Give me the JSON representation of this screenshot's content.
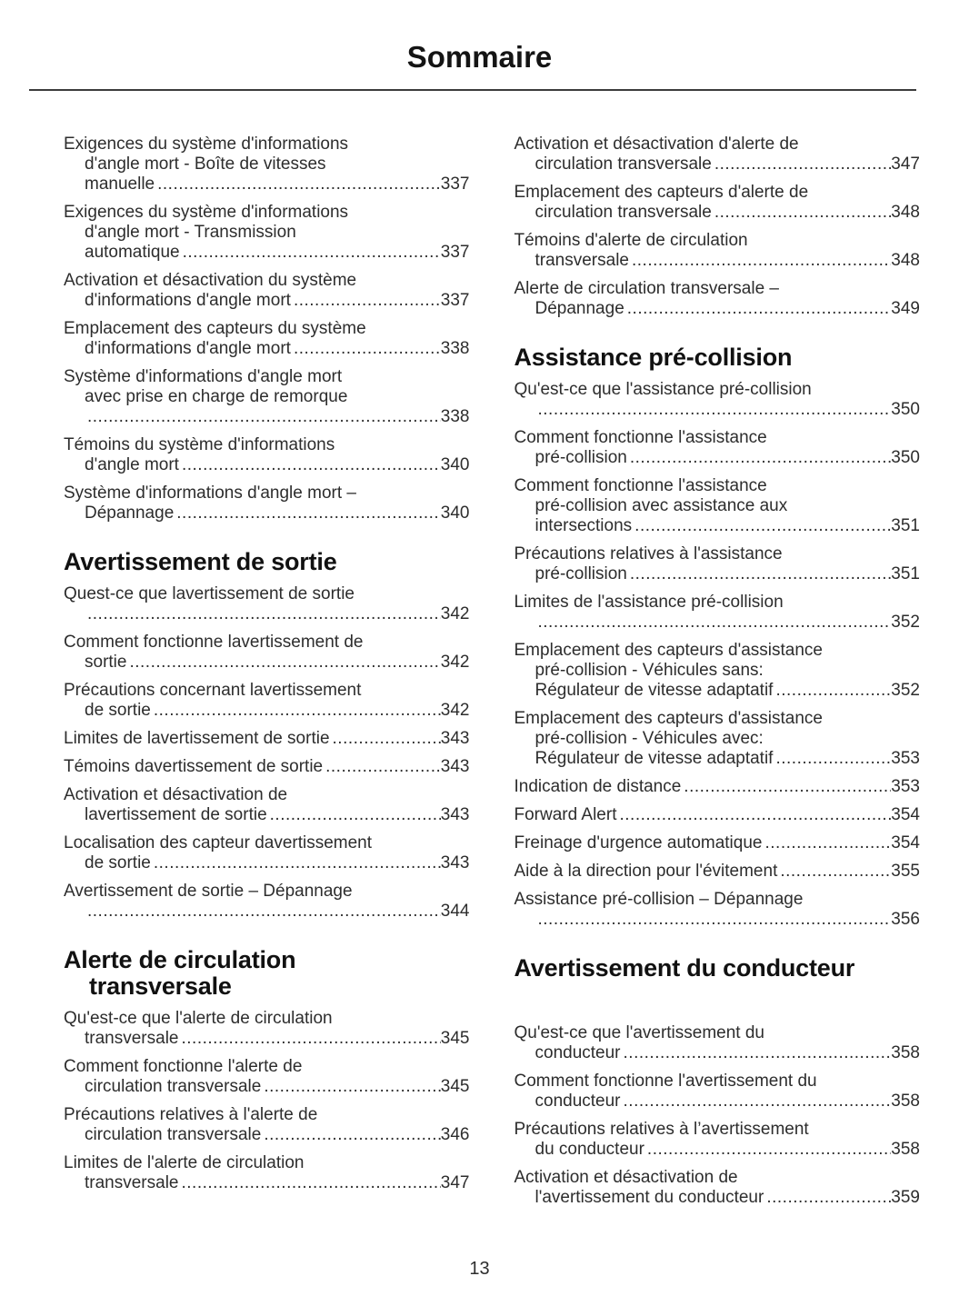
{
  "page": {
    "title": "Sommaire",
    "page_number": "13"
  },
  "toc": {
    "columns": [
      {
        "blocks": [
          {
            "type": "entries",
            "items": [
              {
                "lines": [
                  "Exigences du système d'informations",
                  "d'angle mort - Boîte de vitesses",
                  "manuelle"
                ],
                "page": "337"
              },
              {
                "lines": [
                  "Exigences du système d'informations",
                  "d'angle mort - Transmission",
                  "automatique"
                ],
                "page": "337"
              },
              {
                "lines": [
                  "Activation et désactivation du système",
                  "d'informations d'angle mort"
                ],
                "page": "337"
              },
              {
                "lines": [
                  "Emplacement des capteurs du système",
                  "d'informations d'angle mort"
                ],
                "page": "338"
              },
              {
                "lines": [
                  "Système d'informations d'angle mort",
                  "avec prise en charge de remorque",
                  ""
                ],
                "page": "338"
              },
              {
                "lines": [
                  "Témoins du système d'informations",
                  "d'angle mort"
                ],
                "page": "340"
              },
              {
                "lines": [
                  "Système d'informations d'angle mort –",
                  "Dépannage"
                ],
                "page": "340"
              }
            ]
          },
          {
            "type": "heading",
            "lines": [
              "Avertissement de sortie"
            ]
          },
          {
            "type": "entries",
            "items": [
              {
                "lines": [
                  "Quest-ce que lavertissement de sortie",
                  ""
                ],
                "page": "342"
              },
              {
                "lines": [
                  "Comment fonctionne lavertissement de",
                  "sortie"
                ],
                "page": "342"
              },
              {
                "lines": [
                  "Précautions concernant lavertissement",
                  "de sortie"
                ],
                "page": "342"
              },
              {
                "lines": [
                  "Limites de lavertissement de sortie"
                ],
                "page": "343"
              },
              {
                "lines": [
                  "Témoins davertissement de sortie"
                ],
                "page": "343"
              },
              {
                "lines": [
                  "Activation et désactivation de",
                  "lavertissement de sortie"
                ],
                "page": "343"
              },
              {
                "lines": [
                  "Localisation des capteur davertissement",
                  "de sortie"
                ],
                "page": "343"
              },
              {
                "lines": [
                  "Avertissement de sortie – Dépannage",
                  ""
                ],
                "page": "344"
              }
            ]
          },
          {
            "type": "heading",
            "lines": [
              "Alerte de circulation",
              "transversale"
            ]
          },
          {
            "type": "entries",
            "items": [
              {
                "lines": [
                  "Qu'est-ce que l'alerte de circulation",
                  "transversale"
                ],
                "page": "345"
              },
              {
                "lines": [
                  "Comment fonctionne l'alerte de",
                  "circulation transversale"
                ],
                "page": "345"
              },
              {
                "lines": [
                  "Précautions relatives à l'alerte de",
                  "circulation transversale"
                ],
                "page": "346"
              },
              {
                "lines": [
                  "Limites de l'alerte de circulation",
                  "transversale"
                ],
                "page": "347"
              }
            ]
          }
        ]
      },
      {
        "blocks": [
          {
            "type": "entries",
            "items": [
              {
                "lines": [
                  "Activation et désactivation d'alerte de",
                  "circulation transversale"
                ],
                "page": "347"
              },
              {
                "lines": [
                  "Emplacement des capteurs d'alerte de",
                  "circulation transversale"
                ],
                "page": "348"
              },
              {
                "lines": [
                  "Témoins d'alerte de circulation",
                  "transversale"
                ],
                "page": "348"
              },
              {
                "lines": [
                  "Alerte de circulation transversale –",
                  "Dépannage"
                ],
                "page": "349"
              }
            ]
          },
          {
            "type": "heading",
            "lines": [
              "Assistance pré-collision"
            ]
          },
          {
            "type": "entries",
            "items": [
              {
                "lines": [
                  "Qu'est-ce que l'assistance pré-collision",
                  ""
                ],
                "page": "350"
              },
              {
                "lines": [
                  "Comment fonctionne l'assistance",
                  "pré-collision"
                ],
                "page": "350"
              },
              {
                "lines": [
                  "Comment fonctionne l'assistance",
                  "pré-collision avec assistance aux",
                  "intersections"
                ],
                "page": "351"
              },
              {
                "lines": [
                  "Précautions relatives à l'assistance",
                  "pré-collision"
                ],
                "page": "351"
              },
              {
                "lines": [
                  "Limites de l'assistance pré-collision",
                  ""
                ],
                "page": "352"
              },
              {
                "lines": [
                  "Emplacement des capteurs d'assistance",
                  "pré-collision - Véhicules sans:",
                  "Régulateur de vitesse adaptatif"
                ],
                "page": "352"
              },
              {
                "lines": [
                  "Emplacement des capteurs d'assistance",
                  "pré-collision - Véhicules avec:",
                  "Régulateur de vitesse adaptatif"
                ],
                "page": "353"
              },
              {
                "lines": [
                  "Indication de distance"
                ],
                "page": "353"
              },
              {
                "lines": [
                  "Forward Alert"
                ],
                "page": "354"
              },
              {
                "lines": [
                  "Freinage d'urgence automatique"
                ],
                "page": "354"
              },
              {
                "lines": [
                  "Aide à la direction pour l'évitement"
                ],
                "page": "355"
              },
              {
                "lines": [
                  "Assistance pré-collision – Dépannage",
                  ""
                ],
                "page": "356"
              }
            ]
          },
          {
            "type": "heading",
            "lines": [
              "Avertissement du conducteur"
            ],
            "extra_space_after": true
          },
          {
            "type": "entries",
            "items": [
              {
                "lines": [
                  "Qu'est-ce que l'avertissement du",
                  "conducteur"
                ],
                "page": "358"
              },
              {
                "lines": [
                  "Comment fonctionne l'avertissement du",
                  "conducteur"
                ],
                "page": "358"
              },
              {
                "lines": [
                  "Précautions relatives à l’avertissement",
                  "du conducteur"
                ],
                "page": "358"
              },
              {
                "lines": [
                  "Activation et désactivation de",
                  "l'avertissement du conducteur"
                ],
                "page": "359"
              }
            ]
          }
        ]
      }
    ]
  }
}
